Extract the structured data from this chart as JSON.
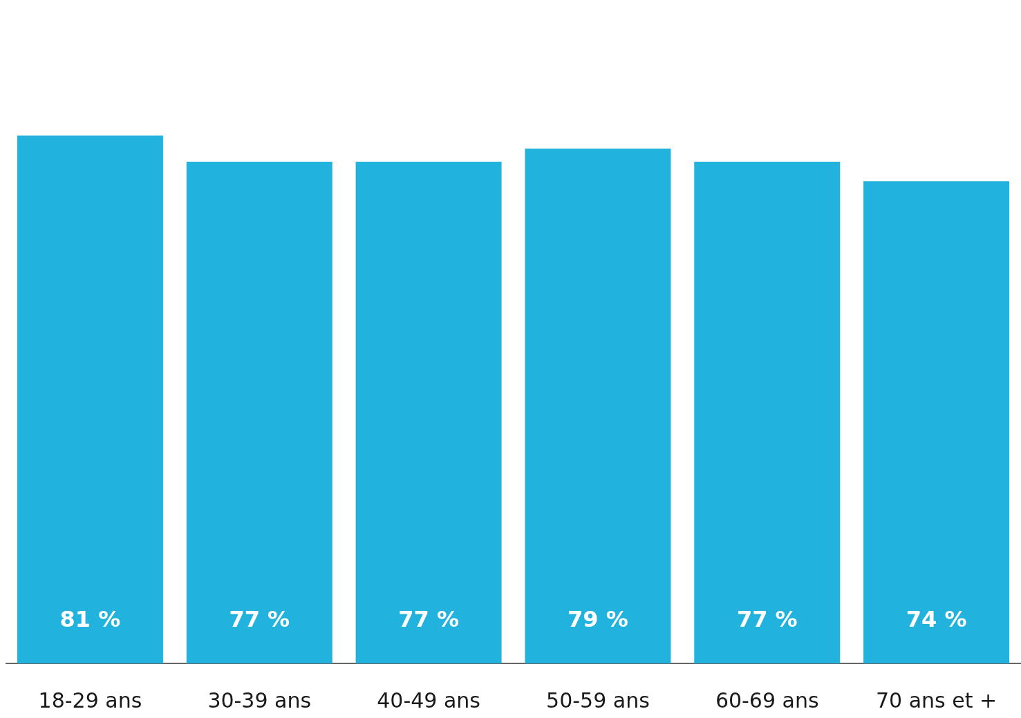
{
  "chart_data": {
    "type": "bar",
    "categories": [
      "18-29 ans",
      "30-39 ans",
      "40-49 ans",
      "50-59 ans",
      "60-69 ans",
      "70 ans et +"
    ],
    "values": [
      81,
      77,
      77,
      79,
      77,
      74
    ],
    "value_labels": [
      "81 %",
      "77 %",
      "77 %",
      "79 %",
      "77 %",
      "74 %"
    ],
    "color": "#22b2de"
  }
}
